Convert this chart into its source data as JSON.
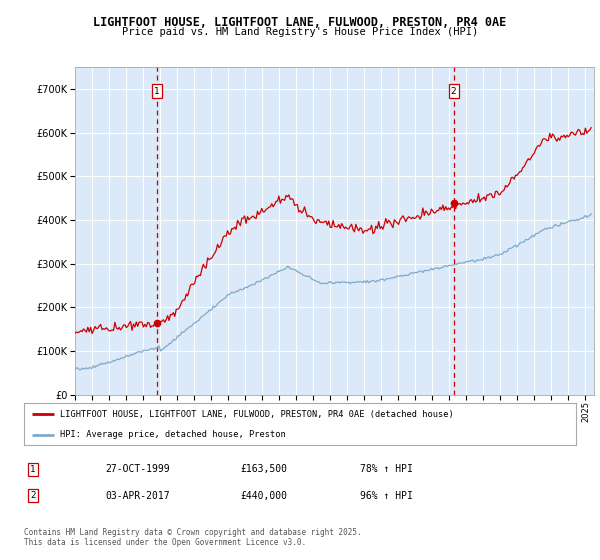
{
  "title1": "LIGHTFOOT HOUSE, LIGHTFOOT LANE, FULWOOD, PRESTON, PR4 0AE",
  "title2": "Price paid vs. HM Land Registry's House Price Index (HPI)",
  "ylim": [
    0,
    750000
  ],
  "yticks": [
    0,
    100000,
    200000,
    300000,
    400000,
    500000,
    600000,
    700000
  ],
  "xlim_start": 1995.0,
  "xlim_end": 2025.5,
  "plot_bg": "#dce9f8",
  "grid_color": "#ffffff",
  "sale_color": "#cc0000",
  "hpi_color": "#7eaacc",
  "marker1_x": 1999.82,
  "marker1_y": 163500,
  "marker2_x": 2017.25,
  "marker2_y": 440000,
  "marker1_label": "27-OCT-1999",
  "marker1_price": "£163,500",
  "marker1_hpi": "78% ↑ HPI",
  "marker2_label": "03-APR-2017",
  "marker2_price": "£440,000",
  "marker2_hpi": "96% ↑ HPI",
  "legend_line1": "LIGHTFOOT HOUSE, LIGHTFOOT LANE, FULWOOD, PRESTON, PR4 0AE (detached house)",
  "legend_line2": "HPI: Average price, detached house, Preston",
  "footnote": "Contains HM Land Registry data © Crown copyright and database right 2025.\nThis data is licensed under the Open Government Licence v3.0."
}
